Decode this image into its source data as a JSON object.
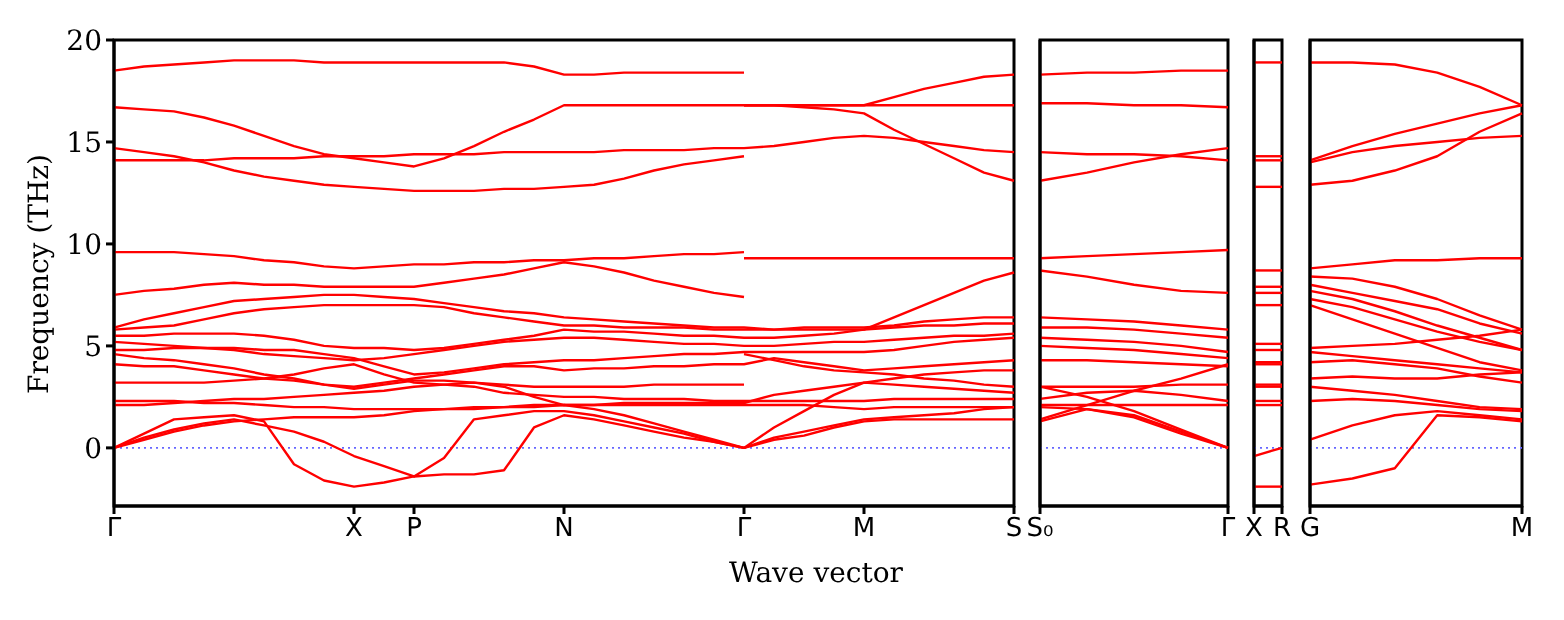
{
  "chart_data": [
    {
      "type": "line",
      "ylabel": "Frequency (THz)",
      "xlabel": "Wave vector",
      "ylim": [
        -2.85,
        20
      ],
      "yticks": [
        0,
        5,
        10,
        15,
        20
      ],
      "categories": [
        "Γ",
        null,
        null,
        null,
        null,
        null,
        null,
        null,
        "X",
        null,
        "P",
        null,
        null,
        null,
        null,
        "N",
        null,
        null,
        null,
        null,
        null,
        "Γ",
        null,
        null,
        null,
        "M",
        null,
        null,
        null,
        null,
        "S"
      ],
      "ref_lines": [
        {
          "axis": "y",
          "value": 0,
          "color": "#6666ff",
          "line_style": "dotted"
        }
      ],
      "series": [
        {
          "color": "#ff0000",
          "values": [
            18.5,
            18.7,
            18.8,
            18.9,
            19.0,
            19.0,
            19.0,
            18.9,
            18.9,
            18.9,
            18.9,
            18.9,
            18.9,
            18.9,
            18.7,
            18.3,
            18.3,
            18.4,
            18.4,
            18.4,
            18.4,
            18.4,
            null,
            null,
            null,
            null,
            null,
            null,
            null,
            null,
            null
          ]
        },
        {
          "color": "#ff0000",
          "values": [
            16.7,
            16.6,
            16.5,
            16.2,
            15.8,
            15.3,
            14.8,
            14.4,
            14.2,
            14.0,
            13.8,
            14.2,
            14.8,
            15.5,
            16.1,
            16.8,
            16.8,
            16.8,
            16.8,
            16.8,
            16.8,
            16.8,
            16.8,
            16.8,
            16.8,
            16.8,
            16.8,
            16.8,
            16.8,
            16.8,
            16.8
          ]
        },
        {
          "color": "#ff0000",
          "values": [
            14.1,
            14.1,
            14.1,
            14.1,
            14.2,
            14.2,
            14.2,
            14.3,
            14.3,
            14.3,
            14.4,
            14.4,
            14.4,
            14.5,
            14.5,
            14.5,
            14.5,
            14.6,
            14.6,
            14.6,
            14.7,
            14.7,
            14.8,
            15.0,
            15.2,
            15.3,
            15.2,
            15.0,
            14.8,
            14.6,
            14.5
          ]
        },
        {
          "color": "#ff0000",
          "values": [
            14.7,
            14.5,
            14.3,
            14.0,
            13.6,
            13.3,
            13.1,
            12.9,
            12.8,
            12.7,
            12.6,
            12.6,
            12.6,
            12.7,
            12.7,
            12.8,
            12.9,
            13.2,
            13.6,
            13.9,
            14.1,
            14.3,
            null,
            null,
            null,
            null,
            null,
            null,
            null,
            null,
            null
          ]
        },
        {
          "color": "#ff0000",
          "values": [
            9.6,
            9.6,
            9.6,
            9.5,
            9.4,
            9.2,
            9.1,
            8.9,
            8.8,
            8.9,
            9.0,
            9.0,
            9.1,
            9.1,
            9.2,
            9.2,
            9.3,
            9.3,
            9.4,
            9.5,
            9.5,
            9.6,
            null,
            null,
            null,
            null,
            null,
            null,
            null,
            null,
            null
          ]
        },
        {
          "color": "#ff0000",
          "values": [
            7.5,
            7.7,
            7.8,
            8.0,
            8.1,
            8.0,
            8.0,
            7.9,
            7.9,
            7.9,
            7.9,
            8.1,
            8.3,
            8.5,
            8.8,
            9.1,
            8.9,
            8.6,
            8.2,
            7.9,
            7.6,
            7.4,
            null,
            null,
            null,
            null,
            null,
            null,
            null,
            null,
            null
          ]
        },
        {
          "color": "#ff0000",
          "values": [
            5.9,
            6.3,
            6.6,
            6.9,
            7.2,
            7.3,
            7.4,
            7.5,
            7.5,
            7.4,
            7.3,
            7.1,
            6.9,
            6.7,
            6.6,
            6.4,
            6.3,
            6.2,
            6.1,
            6.0,
            5.9,
            5.9,
            5.8,
            5.8,
            5.8,
            5.8,
            6.4,
            7.0,
            7.6,
            8.2,
            8.6
          ]
        },
        {
          "color": "#ff0000",
          "values": [
            5.8,
            5.9,
            6.0,
            6.3,
            6.6,
            6.8,
            6.9,
            7.0,
            7.0,
            7.0,
            7.0,
            6.9,
            6.6,
            6.4,
            6.2,
            6.0,
            6.0,
            5.9,
            5.9,
            5.9,
            5.8,
            5.8,
            5.8,
            5.9,
            5.9,
            5.9,
            6.0,
            6.2,
            6.3,
            6.4,
            6.4
          ]
        },
        {
          "color": "#ff0000",
          "values": [
            5.5,
            5.5,
            5.6,
            5.6,
            5.6,
            5.5,
            5.3,
            5.0,
            4.9,
            4.9,
            4.8,
            4.9,
            5.1,
            5.3,
            5.5,
            5.8,
            5.7,
            5.7,
            5.6,
            5.5,
            5.5,
            5.4,
            5.4,
            5.5,
            5.6,
            5.8,
            5.9,
            6.0,
            6.0,
            6.1,
            6.1
          ]
        },
        {
          "color": "#ff0000",
          "values": [
            5.2,
            5.1,
            5.0,
            4.9,
            4.8,
            4.6,
            4.5,
            4.4,
            4.3,
            4.4,
            4.6,
            4.8,
            5.0,
            5.2,
            5.3,
            5.4,
            5.4,
            5.3,
            5.2,
            5.1,
            5.1,
            5.0,
            5.0,
            5.1,
            5.2,
            5.2,
            5.3,
            5.4,
            5.5,
            5.5,
            5.6
          ]
        },
        {
          "color": "#ff0000",
          "values": [
            4.8,
            4.8,
            4.9,
            4.9,
            4.9,
            4.8,
            4.8,
            4.6,
            4.4,
            4.0,
            3.6,
            3.7,
            3.9,
            4.1,
            4.2,
            4.3,
            4.3,
            4.4,
            4.5,
            4.6,
            4.6,
            4.7,
            4.7,
            4.7,
            4.7,
            4.7,
            4.8,
            5.0,
            5.2,
            5.3,
            5.4
          ]
        },
        {
          "color": "#ff0000",
          "values": [
            4.6,
            4.4,
            4.3,
            4.1,
            3.9,
            3.6,
            3.4,
            3.1,
            3.0,
            3.2,
            3.4,
            3.6,
            3.8,
            4.0,
            4.0,
            3.8,
            3.9,
            3.9,
            4.0,
            4.0,
            4.1,
            4.1,
            4.4,
            4.2,
            4.0,
            3.8,
            3.9,
            4.0,
            4.1,
            4.2,
            4.3
          ]
        },
        {
          "color": "#ff0000",
          "values": [
            4.1,
            4.0,
            4.0,
            3.8,
            3.6,
            3.4,
            3.3,
            3.1,
            2.9,
            3.1,
            3.3,
            3.3,
            3.2,
            3.1,
            3.0,
            3.0,
            3.0,
            3.0,
            3.1,
            3.1,
            3.1,
            3.1,
            null,
            null,
            null,
            null,
            null,
            null,
            null,
            null,
            null
          ]
        },
        {
          "color": "#ff0000",
          "values": [
            3.2,
            3.2,
            3.2,
            3.2,
            3.3,
            3.4,
            3.6,
            3.9,
            4.1,
            3.6,
            3.2,
            3.1,
            3.0,
            2.7,
            2.6,
            2.5,
            2.5,
            2.4,
            2.4,
            2.4,
            2.3,
            2.3,
            2.3,
            2.3,
            2.3,
            2.3,
            2.4,
            2.4,
            2.4,
            2.4,
            2.4
          ]
        },
        {
          "color": "#ff0000",
          "values": [
            2.3,
            2.3,
            2.3,
            2.2,
            2.2,
            2.1,
            2.0,
            2.0,
            1.9,
            1.9,
            1.9,
            1.9,
            2.0,
            2.0,
            2.1,
            2.1,
            2.1,
            2.1,
            2.1,
            2.1,
            2.1,
            2.1,
            2.1,
            2.1,
            2.0,
            1.9,
            2.0,
            2.0,
            2.0,
            2.0,
            2.0
          ]
        },
        {
          "color": "#ff0000",
          "values": [
            2.1,
            2.1,
            2.2,
            2.3,
            2.4,
            2.4,
            2.5,
            2.6,
            2.7,
            2.8,
            3.0,
            3.1,
            3.2,
            3.0,
            2.5,
            2.1,
            2.1,
            2.2,
            2.2,
            2.2,
            2.2,
            2.2,
            2.6,
            2.8,
            3.0,
            3.2,
            3.4,
            3.6,
            3.7,
            3.8,
            3.8
          ]
        },
        {
          "color": "#ff0000",
          "values": [
            0,
            0.7,
            1.4,
            1.5,
            1.6,
            1.3,
            -0.8,
            -1.6,
            -1.9,
            -1.7,
            -1.4,
            -1.3,
            -1.3,
            -1.1,
            1.0,
            1.6,
            1.4,
            1.1,
            0.8,
            0.5,
            0.3,
            0,
            1.0,
            1.8,
            2.6,
            3.2,
            3.1,
            3.0,
            2.9,
            2.8,
            2.7
          ]
        },
        {
          "color": "#ff0000",
          "values": [
            0,
            0.5,
            0.9,
            1.2,
            1.4,
            1.1,
            0.8,
            0.3,
            -0.4,
            -0.9,
            -1.4,
            -0.5,
            1.4,
            1.6,
            1.8,
            1.8,
            1.6,
            1.3,
            1.0,
            0.7,
            0.3,
            0,
            0.5,
            0.8,
            1.1,
            1.4,
            1.5,
            1.6,
            1.7,
            1.9,
            2.0
          ]
        },
        {
          "color": "#ff0000",
          "values": [
            0,
            0.4,
            0.8,
            1.1,
            1.3,
            1.4,
            1.5,
            1.5,
            1.5,
            1.6,
            1.8,
            1.9,
            1.9,
            2.0,
            2.0,
            2.1,
            1.9,
            1.6,
            1.2,
            0.8,
            0.4,
            0,
            0.4,
            0.6,
            1.0,
            1.3,
            1.4,
            1.4,
            1.4,
            1.4,
            1.4
          ]
        },
        {
          "color": "#ff0000",
          "values": [
            null,
            null,
            null,
            null,
            null,
            null,
            null,
            null,
            null,
            null,
            null,
            null,
            null,
            null,
            null,
            null,
            null,
            null,
            null,
            null,
            null,
            16.8,
            16.8,
            16.8,
            16.8,
            16.8,
            17.2,
            17.6,
            17.9,
            18.2,
            18.3
          ]
        },
        {
          "color": "#ff0000",
          "values": [
            null,
            null,
            null,
            null,
            null,
            null,
            null,
            null,
            null,
            null,
            null,
            null,
            null,
            null,
            null,
            null,
            null,
            null,
            null,
            null,
            null,
            16.8,
            16.8,
            16.7,
            16.6,
            16.4,
            15.6,
            14.9,
            14.2,
            13.5,
            13.1
          ]
        },
        {
          "color": "#ff0000",
          "values": [
            null,
            null,
            null,
            null,
            null,
            null,
            null,
            null,
            null,
            null,
            null,
            null,
            null,
            null,
            null,
            null,
            null,
            null,
            null,
            null,
            null,
            9.3,
            9.3,
            9.3,
            9.3,
            9.3,
            9.3,
            9.3,
            9.3,
            9.3,
            9.3
          ]
        },
        {
          "color": "#ff0000",
          "values": [
            null,
            null,
            null,
            null,
            null,
            null,
            null,
            null,
            null,
            null,
            null,
            null,
            null,
            null,
            null,
            null,
            null,
            null,
            null,
            null,
            null,
            4.6,
            4.3,
            4.0,
            3.8,
            3.7,
            3.6,
            3.4,
            3.3,
            3.1,
            3.0
          ]
        }
      ]
    },
    {
      "type": "line",
      "ylim": [
        -2.85,
        20
      ],
      "tick_labels": "x",
      "categories": [
        "S₀",
        null,
        null,
        null,
        "Γ"
      ],
      "ref_lines": [
        {
          "axis": "y",
          "value": 0,
          "color": "#6666ff",
          "line_style": "dotted"
        }
      ],
      "series": [
        {
          "color": "#ff0000",
          "values": [
            18.3,
            18.4,
            18.4,
            18.5,
            18.5
          ]
        },
        {
          "color": "#ff0000",
          "values": [
            16.9,
            16.9,
            16.8,
            16.8,
            16.7
          ]
        },
        {
          "color": "#ff0000",
          "values": [
            14.5,
            14.4,
            14.4,
            14.3,
            14.1
          ]
        },
        {
          "color": "#ff0000",
          "values": [
            13.1,
            13.5,
            14.0,
            14.4,
            14.7
          ]
        },
        {
          "color": "#ff0000",
          "values": [
            9.3,
            9.4,
            9.5,
            9.6,
            9.7
          ]
        },
        {
          "color": "#ff0000",
          "values": [
            8.7,
            8.4,
            8.0,
            7.7,
            7.6
          ]
        },
        {
          "color": "#ff0000",
          "values": [
            6.4,
            6.3,
            6.2,
            6.0,
            5.8
          ]
        },
        {
          "color": "#ff0000",
          "values": [
            5.9,
            5.9,
            5.8,
            5.6,
            5.4
          ]
        },
        {
          "color": "#ff0000",
          "values": [
            5.4,
            5.3,
            5.2,
            5.0,
            4.7
          ]
        },
        {
          "color": "#ff0000",
          "values": [
            5.0,
            4.9,
            4.8,
            4.6,
            4.4
          ]
        },
        {
          "color": "#ff0000",
          "values": [
            4.3,
            4.3,
            4.2,
            4.1,
            4.0
          ]
        },
        {
          "color": "#ff0000",
          "values": [
            3.0,
            3.0,
            3.0,
            3.1,
            3.1
          ]
        },
        {
          "color": "#ff0000",
          "values": [
            2.4,
            2.7,
            2.8,
            2.6,
            2.3
          ]
        },
        {
          "color": "#ff0000",
          "values": [
            2.1,
            2.1,
            2.1,
            2.1,
            2.1
          ]
        },
        {
          "color": "#ff0000",
          "values": [
            1.4,
            2.1,
            2.8,
            3.4,
            4.1
          ]
        },
        {
          "color": "#ff0000",
          "values": [
            1.3,
            1.9,
            1.6,
            0.8,
            0
          ]
        },
        {
          "color": "#ff0000",
          "values": [
            2.0,
            1.9,
            1.5,
            0.7,
            0
          ]
        },
        {
          "color": "#ff0000",
          "values": [
            3.0,
            2.5,
            1.8,
            0.9,
            0
          ]
        }
      ]
    },
    {
      "type": "line",
      "ylim": [
        -2.85,
        20
      ],
      "tick_labels": "x",
      "categories": [
        "X",
        "R"
      ],
      "ref_lines": [
        {
          "axis": "y",
          "value": 0,
          "color": "#6666ff",
          "line_style": "dotted"
        }
      ],
      "series": [
        {
          "color": "#ff0000",
          "values": [
            18.9,
            18.9
          ]
        },
        {
          "color": "#ff0000",
          "values": [
            14.3,
            14.3
          ]
        },
        {
          "color": "#ff0000",
          "values": [
            14.1,
            14.1
          ]
        },
        {
          "color": "#ff0000",
          "values": [
            12.8,
            12.8
          ]
        },
        {
          "color": "#ff0000",
          "values": [
            8.7,
            8.7
          ]
        },
        {
          "color": "#ff0000",
          "values": [
            7.9,
            7.9
          ]
        },
        {
          "color": "#ff0000",
          "values": [
            7.6,
            7.6
          ]
        },
        {
          "color": "#ff0000",
          "values": [
            7.0,
            7.0
          ]
        },
        {
          "color": "#ff0000",
          "values": [
            5.1,
            5.1
          ]
        },
        {
          "color": "#ff0000",
          "values": [
            4.8,
            4.8
          ]
        },
        {
          "color": "#ff0000",
          "values": [
            4.2,
            4.2
          ]
        },
        {
          "color": "#ff0000",
          "values": [
            4.1,
            4.1
          ]
        },
        {
          "color": "#ff0000",
          "values": [
            3.1,
            3.1
          ]
        },
        {
          "color": "#ff0000",
          "values": [
            3.0,
            3.0
          ]
        },
        {
          "color": "#ff0000",
          "values": [
            2.3,
            2.3
          ]
        },
        {
          "color": "#ff0000",
          "values": [
            2.1,
            2.1
          ]
        },
        {
          "color": "#ff0000",
          "values": [
            -0.4,
            0
          ]
        },
        {
          "color": "#ff0000",
          "values": [
            -1.9,
            -1.9
          ]
        }
      ]
    },
    {
      "type": "line",
      "ylim": [
        -2.85,
        20
      ],
      "tick_labels": "x",
      "categories": [
        "G",
        null,
        null,
        null,
        null,
        "M"
      ],
      "ref_lines": [
        {
          "axis": "y",
          "value": 0,
          "color": "#6666ff",
          "line_style": "dotted"
        }
      ],
      "series": [
        {
          "color": "#ff0000",
          "values": [
            18.9,
            18.9,
            18.8,
            18.4,
            17.7,
            16.8
          ]
        },
        {
          "color": "#ff0000",
          "values": [
            14.1,
            14.8,
            15.4,
            15.9,
            16.4,
            16.8
          ]
        },
        {
          "color": "#ff0000",
          "values": [
            14.0,
            14.5,
            14.8,
            15.0,
            15.2,
            15.3
          ]
        },
        {
          "color": "#ff0000",
          "values": [
            12.9,
            13.1,
            13.6,
            14.3,
            15.5,
            16.4
          ]
        },
        {
          "color": "#ff0000",
          "values": [
            8.8,
            9.0,
            9.2,
            9.2,
            9.3,
            9.3
          ]
        },
        {
          "color": "#ff0000",
          "values": [
            8.4,
            8.3,
            7.9,
            7.3,
            6.5,
            5.8
          ]
        },
        {
          "color": "#ff0000",
          "values": [
            8.0,
            7.6,
            7.2,
            6.8,
            6.1,
            5.6
          ]
        },
        {
          "color": "#ff0000",
          "values": [
            7.7,
            7.3,
            6.7,
            6.0,
            5.4,
            4.8
          ]
        },
        {
          "color": "#ff0000",
          "values": [
            7.3,
            6.9,
            6.3,
            5.7,
            5.2,
            4.8
          ]
        },
        {
          "color": "#ff0000",
          "values": [
            7.0,
            6.3,
            5.6,
            4.9,
            4.2,
            3.8
          ]
        },
        {
          "color": "#ff0000",
          "values": [
            4.9,
            5.0,
            5.1,
            5.3,
            5.5,
            5.8
          ]
        },
        {
          "color": "#ff0000",
          "values": [
            4.7,
            4.5,
            4.3,
            4.1,
            3.9,
            3.7
          ]
        },
        {
          "color": "#ff0000",
          "values": [
            4.2,
            4.3,
            4.1,
            3.9,
            3.5,
            3.2
          ]
        },
        {
          "color": "#ff0000",
          "values": [
            3.4,
            3.5,
            3.4,
            3.4,
            3.6,
            3.7
          ]
        },
        {
          "color": "#ff0000",
          "values": [
            3.0,
            2.8,
            2.6,
            2.3,
            2.0,
            1.9
          ]
        },
        {
          "color": "#ff0000",
          "values": [
            2.3,
            2.4,
            2.3,
            2.1,
            1.9,
            1.8
          ]
        },
        {
          "color": "#ff0000",
          "values": [
            0.4,
            1.1,
            1.6,
            1.8,
            1.6,
            1.4
          ]
        },
        {
          "color": "#ff0000",
          "values": [
            -1.8,
            -1.5,
            -1.0,
            1.6,
            1.5,
            1.3
          ]
        }
      ]
    }
  ]
}
